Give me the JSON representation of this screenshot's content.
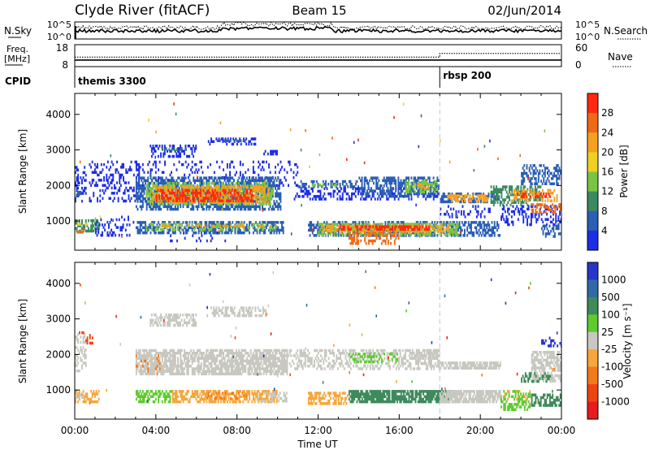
{
  "header": {
    "station": "Clyde River (fitACF)",
    "beam": "Beam 15",
    "date": "02/Jun/2014"
  },
  "chart_data": [
    {
      "type": "line",
      "name": "noise-panel",
      "left_label": "N.Sky",
      "right_label": "N.Search",
      "left_ticks": [
        "10^5",
        "10^0"
      ],
      "right_ticks": [
        "10^5",
        "10^0"
      ]
    },
    {
      "type": "line",
      "name": "frequency-panel",
      "left_label": "Freq.",
      "left_unit": "[MHz]",
      "right_label": "Nave",
      "left_ticks": [
        18,
        8
      ],
      "right_ticks": [
        60,
        0
      ],
      "freq_mhz": [
        {
          "x": 0,
          "y": 11
        },
        {
          "x": 24,
          "y": 11
        }
      ],
      "nave": [
        {
          "x": 0,
          "y": 26
        },
        {
          "x": 18,
          "y": 26
        },
        {
          "x": 18,
          "y": 36
        },
        {
          "x": 24,
          "y": 36
        }
      ]
    },
    {
      "type": "table",
      "name": "cpid-panel",
      "label": "CPID",
      "segments": [
        {
          "start": 0,
          "end": 18,
          "label": "themis 3300"
        },
        {
          "start": 18,
          "end": 24,
          "label": "rbsp 200"
        }
      ]
    },
    {
      "type": "heatmap",
      "name": "power",
      "ylabel": "Slant Range [km]",
      "yticks": [
        1000,
        2000,
        3000,
        4000
      ],
      "ylim": [
        180,
        4590
      ],
      "xlim": [
        0,
        24
      ],
      "colorbar_label": "Power [dB]",
      "colorbar_ticks": [
        4,
        8,
        12,
        16,
        20,
        24,
        28
      ],
      "colors": [
        "#1d2ee6",
        "#2a5fb4",
        "#3a8a60",
        "#7bc443",
        "#f0d020",
        "#f7a020",
        "#f06a16",
        "#ff2a10"
      ],
      "bands": [
        {
          "t0": 0,
          "t1": 0.6,
          "r0": 1500,
          "r1": 2550,
          "c": 0,
          "d": 0.3
        },
        {
          "t0": 0,
          "t1": 0.4,
          "r0": 1700,
          "r1": 1850,
          "c": 1,
          "d": 0.6
        },
        {
          "t0": 0,
          "t1": 1.2,
          "r0": 650,
          "r1": 1050,
          "c": 2,
          "d": 0.5
        },
        {
          "t0": 0.05,
          "t1": 0.6,
          "r0": 850,
          "r1": 950,
          "c": 4,
          "d": 0.6
        },
        {
          "t0": 0.1,
          "t1": 0.5,
          "r0": 650,
          "r1": 800,
          "c": 6,
          "d": 0.5
        },
        {
          "t0": 0.7,
          "t1": 3.2,
          "r0": 1550,
          "r1": 2700,
          "c": 0,
          "d": 0.25
        },
        {
          "t0": 1.0,
          "t1": 3.0,
          "r0": 550,
          "r1": 1150,
          "c": 0,
          "d": 0.2
        },
        {
          "t0": 3.7,
          "t1": 6.0,
          "r0": 2800,
          "r1": 3150,
          "c": 0,
          "d": 0.4
        },
        {
          "t0": 4.3,
          "t1": 5.5,
          "r0": 2950,
          "r1": 3050,
          "c": 2,
          "d": 0.3
        },
        {
          "t0": 6.5,
          "t1": 9.0,
          "r0": 3100,
          "r1": 3350,
          "c": 0,
          "d": 0.4
        },
        {
          "t0": 7.0,
          "t1": 8.6,
          "r0": 3200,
          "r1": 3300,
          "c": 1,
          "d": 0.4
        },
        {
          "t0": 9.3,
          "t1": 10.0,
          "r0": 2850,
          "r1": 3000,
          "c": 0,
          "d": 0.5
        },
        {
          "t0": 3.0,
          "t1": 11.0,
          "r0": 2000,
          "r1": 2700,
          "c": 0,
          "d": 0.15
        },
        {
          "t0": 3.0,
          "t1": 10.2,
          "r0": 1300,
          "r1": 2250,
          "c": 1,
          "d": 0.6
        },
        {
          "t0": 3.5,
          "t1": 9.8,
          "r0": 1450,
          "r1": 2100,
          "c": 3,
          "d": 0.45
        },
        {
          "t0": 3.8,
          "t1": 9.6,
          "r0": 1500,
          "r1": 2000,
          "c": 5,
          "d": 0.5
        },
        {
          "t0": 4.0,
          "t1": 8.8,
          "r0": 1550,
          "r1": 1900,
          "c": 7,
          "d": 0.5
        },
        {
          "t0": 3.0,
          "t1": 10.3,
          "r0": 650,
          "r1": 1000,
          "c": 1,
          "d": 0.5
        },
        {
          "t0": 3.5,
          "t1": 10.0,
          "r0": 700,
          "r1": 950,
          "c": 3,
          "d": 0.35
        },
        {
          "t0": 4.2,
          "t1": 9.8,
          "r0": 800,
          "r1": 900,
          "c": 5,
          "d": 0.3
        },
        {
          "t0": 4.5,
          "t1": 7.5,
          "r0": 400,
          "r1": 700,
          "c": 0,
          "d": 0.15
        },
        {
          "t0": 11.0,
          "t1": 14.0,
          "r0": 1900,
          "r1": 2150,
          "c": 1,
          "d": 0.5
        },
        {
          "t0": 11.5,
          "t1": 13.0,
          "r0": 1950,
          "r1": 2050,
          "c": 3,
          "d": 0.4
        },
        {
          "t0": 10.8,
          "t1": 18.0,
          "r0": 1550,
          "r1": 1950,
          "c": 0,
          "d": 0.35
        },
        {
          "t0": 14.0,
          "t1": 18.0,
          "r0": 1700,
          "r1": 2250,
          "c": 1,
          "d": 0.5
        },
        {
          "t0": 16.3,
          "t1": 17.9,
          "r0": 1800,
          "r1": 2150,
          "c": 3,
          "d": 0.5
        },
        {
          "t0": 16.7,
          "t1": 17.5,
          "r0": 1900,
          "r1": 2050,
          "c": 5,
          "d": 0.4
        },
        {
          "t0": 11.5,
          "t1": 21.0,
          "r0": 550,
          "r1": 1000,
          "c": 1,
          "d": 0.55
        },
        {
          "t0": 12.0,
          "t1": 19.0,
          "r0": 620,
          "r1": 950,
          "c": 3,
          "d": 0.5
        },
        {
          "t0": 12.2,
          "t1": 18.5,
          "r0": 680,
          "r1": 900,
          "c": 5,
          "d": 0.55
        },
        {
          "t0": 13.0,
          "t1": 17.5,
          "r0": 700,
          "r1": 880,
          "c": 7,
          "d": 0.6
        },
        {
          "t0": 13.5,
          "t1": 16.0,
          "r0": 350,
          "r1": 700,
          "c": 6,
          "d": 0.35
        },
        {
          "t0": 18.0,
          "t1": 21.0,
          "r0": 1500,
          "r1": 1800,
          "c": 1,
          "d": 0.5
        },
        {
          "t0": 18.3,
          "t1": 20.5,
          "r0": 1550,
          "r1": 1750,
          "c": 5,
          "d": 0.5
        },
        {
          "t0": 18.0,
          "t1": 20.5,
          "r0": 1100,
          "r1": 1450,
          "c": 0,
          "d": 0.2
        },
        {
          "t0": 20.5,
          "t1": 23.0,
          "r0": 1450,
          "r1": 2000,
          "c": 2,
          "d": 0.5
        },
        {
          "t0": 21.5,
          "t1": 23.8,
          "r0": 1550,
          "r1": 1900,
          "c": 5,
          "d": 0.45
        },
        {
          "t0": 21.8,
          "t1": 23.5,
          "r0": 1650,
          "r1": 1800,
          "c": 7,
          "d": 0.4
        },
        {
          "t0": 22.0,
          "t1": 24.0,
          "r0": 2000,
          "r1": 2600,
          "c": 1,
          "d": 0.45
        },
        {
          "t0": 21.0,
          "t1": 24.0,
          "r0": 900,
          "r1": 1450,
          "c": 0,
          "d": 0.3
        },
        {
          "t0": 22.5,
          "t1": 24.0,
          "r0": 1200,
          "r1": 1500,
          "c": 6,
          "d": 0.45
        },
        {
          "t0": 23.0,
          "t1": 24.0,
          "r0": 550,
          "r1": 900,
          "c": 1,
          "d": 0.4
        }
      ]
    },
    {
      "type": "heatmap",
      "name": "velocity",
      "ylabel": "Slant Range [km]",
      "yticks": [
        1000,
        2000,
        3000,
        4000
      ],
      "ylim": [
        180,
        4590
      ],
      "xlim": [
        0,
        24
      ],
      "xticks": [
        "00:00",
        "04:00",
        "08:00",
        "12:00",
        "16:00",
        "20:00",
        "00:00"
      ],
      "xlabel": "Time UT",
      "colorbar_label": "Velocity [m s⁻¹]",
      "colorbar_ticks": [
        "1000",
        "500",
        "100",
        "25",
        "-25",
        "-100",
        "-500",
        "-1000"
      ],
      "colors": [
        "#2636c8",
        "#2f6aa6",
        "#3f8a5c",
        "#5ecb2f",
        "#c8c8c0",
        "#f6a63a",
        "#f37a18",
        "#ee4510",
        "#e81c1c"
      ],
      "bands": [
        {
          "t0": 0,
          "t1": 0.6,
          "r0": 1500,
          "r1": 2600,
          "c": 4,
          "d": 0.4
        },
        {
          "t0": 0.2,
          "t1": 0.9,
          "r0": 2300,
          "r1": 2650,
          "c": 7,
          "d": 0.25
        },
        {
          "t0": 0,
          "t1": 1.2,
          "r0": 650,
          "r1": 1000,
          "c": 5,
          "d": 0.55
        },
        {
          "t0": 0,
          "t1": 0.5,
          "r0": 750,
          "r1": 900,
          "c": 4,
          "d": 0.5
        },
        {
          "t0": 3.7,
          "t1": 6.0,
          "r0": 2750,
          "r1": 3150,
          "c": 4,
          "d": 0.55
        },
        {
          "t0": 6.5,
          "t1": 9.5,
          "r0": 3050,
          "r1": 3350,
          "c": 4,
          "d": 0.55
        },
        {
          "t0": 3.0,
          "t1": 10.5,
          "r0": 1400,
          "r1": 2150,
          "c": 4,
          "d": 0.75
        },
        {
          "t0": 3.0,
          "t1": 4.2,
          "r0": 1450,
          "r1": 2000,
          "c": 6,
          "d": 0.15
        },
        {
          "t0": 3.0,
          "t1": 4.8,
          "r0": 600,
          "r1": 1000,
          "c": 3,
          "d": 0.55
        },
        {
          "t0": 4.8,
          "t1": 10.0,
          "r0": 650,
          "r1": 1000,
          "c": 5,
          "d": 0.6
        },
        {
          "t0": 6.5,
          "t1": 8.5,
          "r0": 700,
          "r1": 950,
          "c": 6,
          "d": 0.3
        },
        {
          "t0": 9.0,
          "t1": 10.5,
          "r0": 650,
          "r1": 950,
          "c": 4,
          "d": 0.4
        },
        {
          "t0": 10.5,
          "t1": 18.0,
          "r0": 1550,
          "r1": 2150,
          "c": 4,
          "d": 0.4
        },
        {
          "t0": 13.5,
          "t1": 16.0,
          "r0": 1750,
          "r1": 2050,
          "c": 3,
          "d": 0.35
        },
        {
          "t0": 16.5,
          "t1": 18.0,
          "r0": 1850,
          "r1": 2150,
          "c": 4,
          "d": 0.6
        },
        {
          "t0": 11.5,
          "t1": 13.5,
          "r0": 600,
          "r1": 950,
          "c": 5,
          "d": 0.6
        },
        {
          "t0": 13.5,
          "t1": 18.5,
          "r0": 600,
          "r1": 1000,
          "c": 2,
          "d": 0.75
        },
        {
          "t0": 18.0,
          "t1": 21.0,
          "r0": 600,
          "r1": 1000,
          "c": 4,
          "d": 0.8
        },
        {
          "t0": 18.0,
          "t1": 21.0,
          "r0": 1550,
          "r1": 1800,
          "c": 4,
          "d": 0.75
        },
        {
          "t0": 21.0,
          "t1": 22.5,
          "r0": 450,
          "r1": 1000,
          "c": 3,
          "d": 0.45
        },
        {
          "t0": 21.0,
          "t1": 22.5,
          "r0": 700,
          "r1": 1000,
          "c": 5,
          "d": 0.25
        },
        {
          "t0": 22.5,
          "t1": 24.0,
          "r0": 1250,
          "r1": 2100,
          "c": 4,
          "d": 0.7
        },
        {
          "t0": 22.5,
          "t1": 24.0,
          "r0": 500,
          "r1": 900,
          "c": 2,
          "d": 0.5
        },
        {
          "t0": 23.0,
          "t1": 24.0,
          "r0": 2200,
          "r1": 2500,
          "c": 0,
          "d": 0.3
        },
        {
          "t0": 22.0,
          "t1": 23.5,
          "r0": 1200,
          "r1": 1500,
          "c": 2,
          "d": 0.4
        }
      ]
    }
  ]
}
